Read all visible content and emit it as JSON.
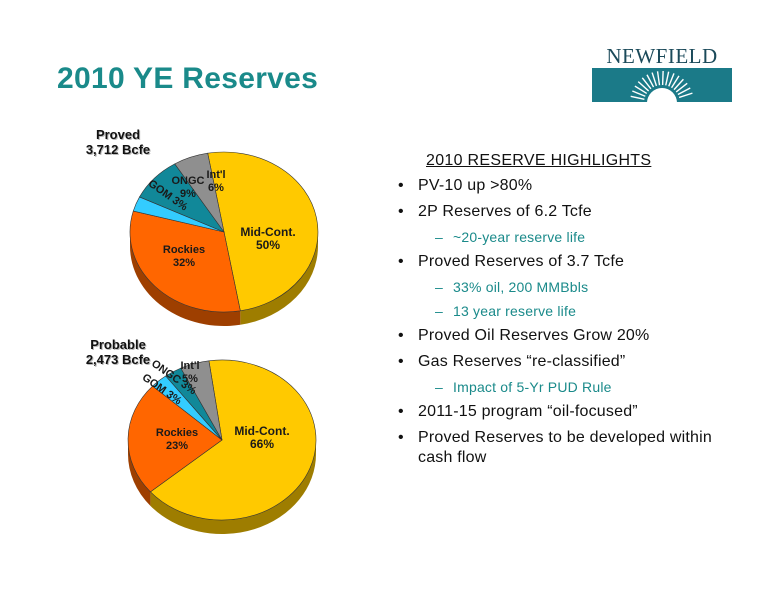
{
  "slide": {
    "title": "2010 YE Reserves"
  },
  "logo": {
    "text": "NEWFIELD",
    "color": "#1b7a88"
  },
  "highlights": {
    "heading": "2010 RESERVE HIGHLIGHTS",
    "items": [
      {
        "level": 1,
        "text": "PV-10 up >80%"
      },
      {
        "level": 1,
        "text": "2P Reserves of 6.2 Tcfe"
      },
      {
        "level": 2,
        "text": "~20-year reserve life"
      },
      {
        "level": 1,
        "text": "Proved Reserves of 3.7 Tcfe"
      },
      {
        "level": 2,
        "text": "33% oil, 200 MMBbls"
      },
      {
        "level": 2,
        "text": "13 year reserve life"
      },
      {
        "level": 1,
        "text": "Proved Oil Reserves Grow 20%"
      },
      {
        "level": 1,
        "text": "Gas Reserves “re-classified”"
      },
      {
        "level": 2,
        "text": "Impact of 5-Yr PUD Rule"
      },
      {
        "level": 1,
        "text": "2011-15 program “oil-focused”"
      },
      {
        "level": 1,
        "text": "Proved Reserves to be developed within cash flow"
      }
    ]
  },
  "colors": {
    "title": "#1a8a8a",
    "Mid-Cont.": "#ffc900",
    "Rockies": "#ff6600",
    "GOM": "#33ccff",
    "ONGC": "#118899",
    "Int'l": "#8f8f8f"
  },
  "chart_data": [
    {
      "type": "pie",
      "title": "Proved\n3,712 Bcfe",
      "slices": [
        {
          "name": "Mid-Cont.",
          "value": 50,
          "label": "Mid-Cont.\n50%"
        },
        {
          "name": "Rockies",
          "value": 32,
          "label": "Rockies\n32%"
        },
        {
          "name": "GOM",
          "value": 3,
          "label": "GOM 3%"
        },
        {
          "name": "ONGC",
          "value": 9,
          "label": "ONGC\n9%"
        },
        {
          "name": "Int'l",
          "value": 6,
          "label": "Int'l\n6%"
        }
      ]
    },
    {
      "type": "pie",
      "title": "Probable\n2,473 Bcfe",
      "slices": [
        {
          "name": "Mid-Cont.",
          "value": 66,
          "label": "Mid-Cont.\n66%"
        },
        {
          "name": "Rockies",
          "value": 23,
          "label": "Rockies\n23%"
        },
        {
          "name": "GOM",
          "value": 3,
          "label": "GOM 3%"
        },
        {
          "name": "ONGC",
          "value": 3,
          "label": "ONGC 3%"
        },
        {
          "name": "Int'l",
          "value": 5,
          "label": "Int'l\n5%"
        }
      ]
    }
  ]
}
